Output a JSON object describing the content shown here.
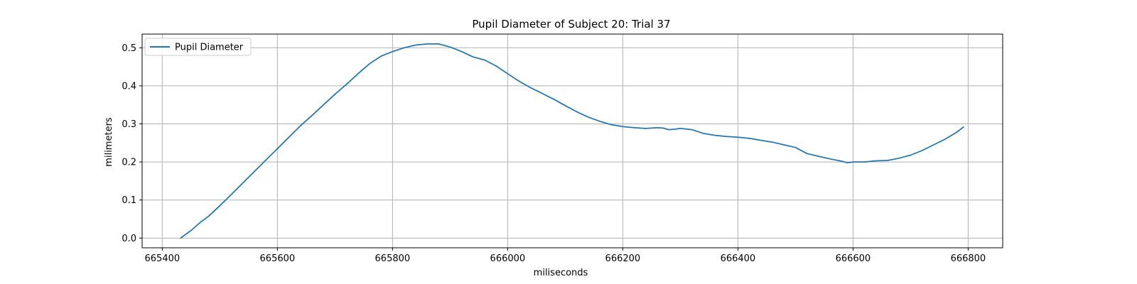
{
  "chart_data": {
    "type": "line",
    "title": "Pupil Diameter of Subject 20: Trial 37",
    "xlabel": "miliseconds",
    "ylabel": "milimeters",
    "xlim": [
      665365,
      666860
    ],
    "ylim": [
      -0.0255,
      0.536
    ],
    "xticks": [
      665400,
      665600,
      665800,
      666000,
      666200,
      666400,
      666600,
      666800
    ],
    "xtick_labels": [
      "665400",
      "665600",
      "665800",
      "666000",
      "666200",
      "666400",
      "666600",
      "666800"
    ],
    "yticks": [
      0.0,
      0.1,
      0.2,
      0.3,
      0.4,
      0.5
    ],
    "ytick_labels": [
      "0.0",
      "0.1",
      "0.2",
      "0.3",
      "0.4",
      "0.5"
    ],
    "grid": true,
    "legend_position": "upper left",
    "series": [
      {
        "name": "Pupil Diameter",
        "color": "#1f77b4",
        "x": [
          665432,
          665450,
          665465,
          665480,
          665500,
          665520,
          665540,
          665560,
          665580,
          665600,
          665620,
          665640,
          665660,
          665680,
          665700,
          665720,
          665740,
          665760,
          665780,
          665800,
          665820,
          665840,
          665860,
          665880,
          665900,
          665920,
          665940,
          665960,
          665980,
          666000,
          666020,
          666040,
          666060,
          666080,
          666100,
          666120,
          666140,
          666160,
          666180,
          666200,
          666220,
          666240,
          666260,
          666270,
          666280,
          666290,
          666300,
          666320,
          666340,
          666360,
          666380,
          666400,
          666420,
          666440,
          666460,
          666480,
          666500,
          666520,
          666540,
          666560,
          666580,
          666590,
          666600,
          666620,
          666640,
          666660,
          666680,
          666700,
          666720,
          666740,
          666760,
          666780,
          666792
        ],
        "y": [
          0.0,
          0.02,
          0.04,
          0.057,
          0.085,
          0.115,
          0.145,
          0.175,
          0.205,
          0.235,
          0.265,
          0.295,
          0.322,
          0.35,
          0.378,
          0.404,
          0.432,
          0.458,
          0.478,
          0.49,
          0.5,
          0.507,
          0.51,
          0.51,
          0.502,
          0.49,
          0.476,
          0.468,
          0.452,
          0.432,
          0.412,
          0.395,
          0.38,
          0.365,
          0.348,
          0.332,
          0.318,
          0.307,
          0.298,
          0.293,
          0.29,
          0.288,
          0.29,
          0.289,
          0.285,
          0.286,
          0.288,
          0.285,
          0.275,
          0.27,
          0.267,
          0.265,
          0.262,
          0.257,
          0.252,
          0.245,
          0.238,
          0.222,
          0.215,
          0.208,
          0.202,
          0.198,
          0.2,
          0.2,
          0.203,
          0.204,
          0.21,
          0.218,
          0.23,
          0.245,
          0.26,
          0.278,
          0.292
        ]
      }
    ]
  }
}
